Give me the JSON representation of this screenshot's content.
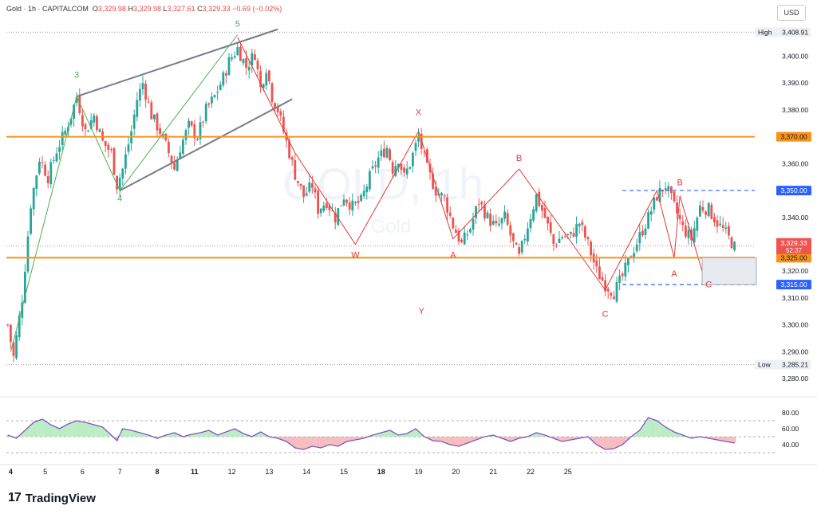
{
  "header": {
    "symbol": "Gold",
    "interval": "1h",
    "source": "CAPITALCOM",
    "open_label": "O",
    "open": "3,329.98",
    "high_label": "H",
    "high": "3,329.98",
    "low_label": "L",
    "low": "3,327.61",
    "close_label": "C",
    "close": "3,329.33",
    "change": "−0.69 (−0.02%)"
  },
  "currency_button": "USD",
  "watermark": {
    "symbol": "GOLD, 1h",
    "name": "Gold"
  },
  "branding": {
    "logo": "17",
    "name": "TradingView"
  },
  "colors": {
    "up": "#26a69a",
    "down": "#ef5350",
    "orange_level": "#f7931a",
    "blue_level": "#2962ff",
    "rsi_line": "#7e57c2",
    "wave_green": "#4caf50",
    "wave_red": "#e53935",
    "channel": "#787b86"
  },
  "chart_data": {
    "type": "candlestick",
    "price_axis": {
      "range": [
        3275,
        3412
      ],
      "ticks": [
        "3,400.00",
        "3,390.00",
        "3,380.00",
        "3,360.00",
        "3,350.00",
        "3,340.00",
        "3,320.00",
        "3,310.00",
        "3,300.00",
        "3,290.00",
        "3,280.00"
      ],
      "tick_values": [
        3400,
        3390,
        3380,
        3360,
        3350,
        3340,
        3320,
        3310,
        3300,
        3290,
        3280
      ]
    },
    "x_axis": {
      "labels": [
        "4",
        "5",
        "6",
        "7",
        "8",
        "11",
        "12",
        "13",
        "14",
        "15",
        "18",
        "19",
        "20",
        "21",
        "22",
        "25"
      ],
      "bold": [
        "4",
        "8",
        "11",
        "18"
      ],
      "label_index": [
        1,
        13,
        26,
        39,
        52,
        65,
        78,
        91,
        104,
        117,
        130,
        143,
        156,
        169,
        182,
        195
      ]
    },
    "high": {
      "label": "High",
      "value": "3,408.91",
      "price": 3408.91
    },
    "low": {
      "label": "Low",
      "value": "3,285.21",
      "price": 3285.21
    },
    "current": {
      "value": "3,329.33",
      "countdown": "52:37",
      "price": 3329.33
    },
    "levels": [
      {
        "price": 3370,
        "label": "3,370.00",
        "style": "orange"
      },
      {
        "price": 3325,
        "label": "3,325.00",
        "style": "orange"
      },
      {
        "price": 3350,
        "label": "3,350.00",
        "style": "blue-dashed"
      },
      {
        "price": 3315,
        "label": "3,315.00",
        "style": "blue-dashed"
      }
    ],
    "path": [
      [
        0,
        3300
      ],
      [
        2,
        3288
      ],
      [
        5,
        3310
      ],
      [
        8,
        3345
      ],
      [
        11,
        3362
      ],
      [
        14,
        3355
      ],
      [
        17,
        3365
      ],
      [
        20,
        3372
      ],
      [
        22,
        3378
      ],
      [
        24,
        3385
      ],
      [
        27,
        3372
      ],
      [
        30,
        3378
      ],
      [
        33,
        3368
      ],
      [
        36,
        3364
      ],
      [
        38,
        3352
      ],
      [
        40,
        3358
      ],
      [
        43,
        3372
      ],
      [
        45,
        3384
      ],
      [
        47,
        3390
      ],
      [
        50,
        3378
      ],
      [
        53,
        3372
      ],
      [
        56,
        3364
      ],
      [
        58,
        3358
      ],
      [
        60,
        3366
      ],
      [
        63,
        3374
      ],
      [
        66,
        3370
      ],
      [
        69,
        3380
      ],
      [
        72,
        3385
      ],
      [
        75,
        3392
      ],
      [
        77,
        3398
      ],
      [
        80,
        3403
      ],
      [
        83,
        3396
      ],
      [
        86,
        3401
      ],
      [
        88,
        3388
      ],
      [
        90,
        3396
      ],
      [
        92,
        3385
      ],
      [
        94,
        3380
      ],
      [
        96,
        3372
      ],
      [
        98,
        3364
      ],
      [
        100,
        3356
      ],
      [
        103,
        3348
      ],
      [
        106,
        3352
      ],
      [
        108,
        3343
      ],
      [
        111,
        3346
      ],
      [
        114,
        3340
      ],
      [
        117,
        3348
      ],
      [
        120,
        3344
      ],
      [
        123,
        3346
      ],
      [
        126,
        3355
      ],
      [
        129,
        3362
      ],
      [
        132,
        3366
      ],
      [
        134,
        3358
      ],
      [
        136,
        3362
      ],
      [
        138,
        3355
      ],
      [
        140,
        3360
      ],
      [
        143,
        3370
      ],
      [
        146,
        3358
      ],
      [
        149,
        3350
      ],
      [
        152,
        3347
      ],
      [
        155,
        3337
      ],
      [
        158,
        3330
      ],
      [
        161,
        3336
      ],
      [
        164,
        3346
      ],
      [
        167,
        3340
      ],
      [
        170,
        3336
      ],
      [
        173,
        3340
      ],
      [
        176,
        3330
      ],
      [
        178,
        3325
      ],
      [
        181,
        3337
      ],
      [
        184,
        3348
      ],
      [
        187,
        3340
      ],
      [
        190,
        3330
      ],
      [
        193,
        3333
      ],
      [
        196,
        3333
      ],
      [
        199,
        3338
      ],
      [
        202,
        3330
      ],
      [
        205,
        3320
      ],
      [
        208,
        3315
      ],
      [
        211,
        3312
      ],
      [
        214,
        3318
      ],
      [
        217,
        3326
      ],
      [
        220,
        3333
      ],
      [
        223,
        3340
      ],
      [
        226,
        3348
      ],
      [
        229,
        3352
      ],
      [
        232,
        3344
      ],
      [
        235,
        3336
      ],
      [
        238,
        3332
      ],
      [
        241,
        3344
      ],
      [
        244,
        3343
      ],
      [
        247,
        3338
      ],
      [
        250,
        3334
      ],
      [
        253,
        3329
      ]
    ],
    "rsi": {
      "ticks": [
        "80.00",
        "60.00",
        "40.00"
      ],
      "tick_values": [
        80,
        60,
        40
      ],
      "levels": [
        70,
        50,
        30
      ],
      "points": [
        [
          0,
          52
        ],
        [
          3,
          48
        ],
        [
          6,
          58
        ],
        [
          9,
          68
        ],
        [
          12,
          72
        ],
        [
          15,
          65
        ],
        [
          18,
          60
        ],
        [
          21,
          66
        ],
        [
          24,
          70
        ],
        [
          27,
          68
        ],
        [
          30,
          65
        ],
        [
          33,
          62
        ],
        [
          36,
          52
        ],
        [
          38,
          45
        ],
        [
          40,
          60
        ],
        [
          43,
          58
        ],
        [
          46,
          55
        ],
        [
          49,
          52
        ],
        [
          52,
          48
        ],
        [
          55,
          52
        ],
        [
          58,
          55
        ],
        [
          61,
          50
        ],
        [
          64,
          53
        ],
        [
          67,
          55
        ],
        [
          70,
          58
        ],
        [
          73,
          52
        ],
        [
          76,
          56
        ],
        [
          79,
          60
        ],
        [
          82,
          54
        ],
        [
          85,
          50
        ],
        [
          88,
          56
        ],
        [
          91,
          50
        ],
        [
          94,
          48
        ],
        [
          97,
          44
        ],
        [
          100,
          36
        ],
        [
          103,
          34
        ],
        [
          106,
          38
        ],
        [
          109,
          36
        ],
        [
          112,
          40
        ],
        [
          115,
          38
        ],
        [
          118,
          44
        ],
        [
          121,
          46
        ],
        [
          124,
          48
        ],
        [
          127,
          52
        ],
        [
          130,
          55
        ],
        [
          133,
          58
        ],
        [
          136,
          52
        ],
        [
          139,
          54
        ],
        [
          142,
          60
        ],
        [
          145,
          50
        ],
        [
          148,
          45
        ],
        [
          151,
          44
        ],
        [
          154,
          40
        ],
        [
          157,
          38
        ],
        [
          160,
          42
        ],
        [
          163,
          46
        ],
        [
          166,
          50
        ],
        [
          169,
          52
        ],
        [
          172,
          48
        ],
        [
          175,
          44
        ],
        [
          178,
          48
        ],
        [
          181,
          50
        ],
        [
          184,
          55
        ],
        [
          187,
          52
        ],
        [
          190,
          48
        ],
        [
          193,
          44
        ],
        [
          196,
          46
        ],
        [
          199,
          48
        ],
        [
          202,
          50
        ],
        [
          205,
          40
        ],
        [
          208,
          34
        ],
        [
          211,
          35
        ],
        [
          214,
          40
        ],
        [
          217,
          50
        ],
        [
          220,
          58
        ],
        [
          223,
          74
        ],
        [
          226,
          70
        ],
        [
          229,
          62
        ],
        [
          232,
          56
        ],
        [
          235,
          52
        ],
        [
          238,
          48
        ],
        [
          241,
          50
        ],
        [
          244,
          48
        ],
        [
          247,
          46
        ],
        [
          250,
          44
        ],
        [
          253,
          42
        ]
      ]
    },
    "annotations": [
      {
        "label": "3",
        "color": "green",
        "x": 24,
        "y": 3392
      },
      {
        "label": "4",
        "color": "green",
        "x": 39,
        "y": 3346
      },
      {
        "label": "5",
        "color": "green",
        "x": 80,
        "y": 3411
      },
      {
        "label": "X",
        "color": "red",
        "x": 143,
        "y": 3378
      },
      {
        "label": "W",
        "color": "red",
        "x": 121,
        "y": 3325
      },
      {
        "label": "Y",
        "color": "red",
        "x": 144,
        "y": 3304
      },
      {
        "label": "A",
        "color": "red",
        "x": 155,
        "y": 3325
      },
      {
        "label": "B",
        "color": "red",
        "x": 178,
        "y": 3361
      },
      {
        "label": "A",
        "color": "red",
        "x": 232,
        "y": 3318
      },
      {
        "label": "B",
        "color": "red",
        "x": 234,
        "y": 3352
      },
      {
        "label": "C",
        "color": "red",
        "x": 208,
        "y": 3303
      },
      {
        "label": "C",
        "color": "red",
        "x": 244,
        "y": 3314
      }
    ],
    "waves_green": [
      [
        1,
        3290
      ],
      [
        24,
        3385
      ],
      [
        39,
        3350
      ],
      [
        80,
        3408
      ]
    ],
    "waves_red": [
      [
        80,
        3407
      ],
      [
        100,
        3364
      ],
      [
        121,
        3330
      ],
      [
        143,
        3372
      ],
      [
        155,
        3332
      ],
      [
        178,
        3358
      ],
      [
        208,
        3313
      ],
      [
        226,
        3350
      ],
      [
        232,
        3325
      ],
      [
        234,
        3348
      ],
      [
        242,
        3319
      ]
    ],
    "channel": [
      [
        [
          24,
          3385
        ],
        [
          94,
          3410
        ]
      ],
      [
        [
          39,
          3350
        ],
        [
          99,
          3384
        ]
      ]
    ]
  }
}
